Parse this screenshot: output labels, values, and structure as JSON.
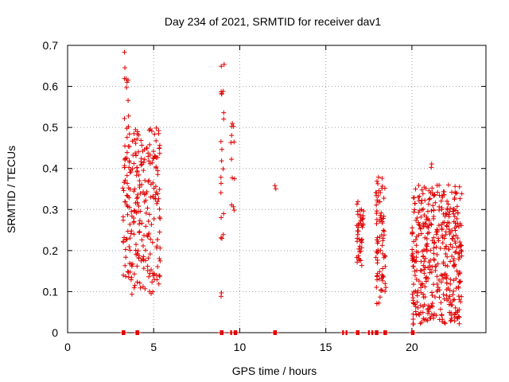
{
  "chart_data": {
    "type": "scatter",
    "title": "Day 234 of 2021, SRMTID for receiver dav1",
    "xlabel": "GPS time / hours",
    "ylabel": "SRMTID / TECUs",
    "xlim": [
      0,
      24.3
    ],
    "ylim": [
      0,
      0.7
    ],
    "x_ticks": [
      0,
      5,
      10,
      15,
      20
    ],
    "x_tick_labels": [
      "0",
      "5",
      "10",
      "15",
      "20"
    ],
    "y_ticks": [
      0,
      0.1,
      0.2,
      0.3,
      0.4,
      0.5,
      0.6,
      0.7
    ],
    "y_tick_labels": [
      "0",
      "0.1",
      "0.2",
      "0.3",
      "0.4",
      "0.5",
      "0.6",
      "0.7"
    ],
    "grid": true,
    "marker_color": "#e00000",
    "series": [
      {
        "name": "SRMTID",
        "marker": "plus",
        "clusters": [
          {
            "x_range": [
              3.2,
              5.4
            ],
            "y_range": [
              0.09,
              0.5
            ],
            "count": 260
          },
          {
            "x_range": [
              3.3,
              3.55
            ],
            "y_range": [
              0.46,
              0.69
            ],
            "count": 12
          },
          {
            "x_range": [
              8.9,
              9.1
            ],
            "y_range": [
              0.07,
              0.68
            ],
            "count": 22
          },
          {
            "x_range": [
              9.4,
              9.7
            ],
            "y_range": [
              0.27,
              0.52
            ],
            "count": 12
          },
          {
            "x_range": [
              12.0,
              12.2
            ],
            "y_range": [
              0.33,
              0.36
            ],
            "count": 2
          },
          {
            "x_range": [
              16.8,
              17.2
            ],
            "y_range": [
              0.16,
              0.32
            ],
            "count": 45
          },
          {
            "x_range": [
              17.9,
              18.5
            ],
            "y_range": [
              0.07,
              0.38
            ],
            "count": 80
          },
          {
            "x_range": [
              20.0,
              22.9
            ],
            "y_range": [
              0.02,
              0.36
            ],
            "count": 420
          },
          {
            "x_range": [
              21.1,
              21.3
            ],
            "y_range": [
              0.38,
              0.43
            ],
            "count": 2
          }
        ],
        "zero_points_x": [
          3.2,
          3.3,
          4.0,
          4.1,
          8.9,
          9.0,
          9.5,
          9.7,
          9.8,
          12.0,
          12.1,
          16.0,
          16.2,
          16.8,
          16.9,
          17.5,
          17.7,
          17.9,
          18.0,
          18.4,
          18.5,
          20.0,
          20.1
        ]
      }
    ]
  }
}
